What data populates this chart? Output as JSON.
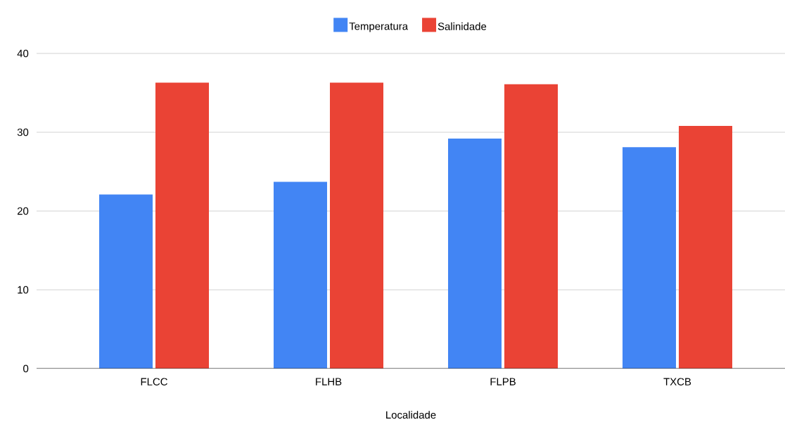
{
  "chart_data": {
    "type": "bar",
    "xlabel": "Localidade",
    "categories": [
      "FLCC",
      "FLHB",
      "FLPB",
      "TXCB"
    ],
    "series": [
      {
        "name": "Temperatura",
        "color": "#4285f4",
        "values": [
          22.1,
          23.7,
          29.2,
          28.1
        ]
      },
      {
        "name": "Salinidade",
        "color": "#ea4335",
        "values": [
          36.3,
          36.3,
          36.1,
          30.8
        ]
      }
    ],
    "ylim": [
      0,
      40
    ],
    "yticks": [
      0,
      10,
      20,
      30,
      40
    ],
    "grid": "y",
    "legend": "top"
  }
}
